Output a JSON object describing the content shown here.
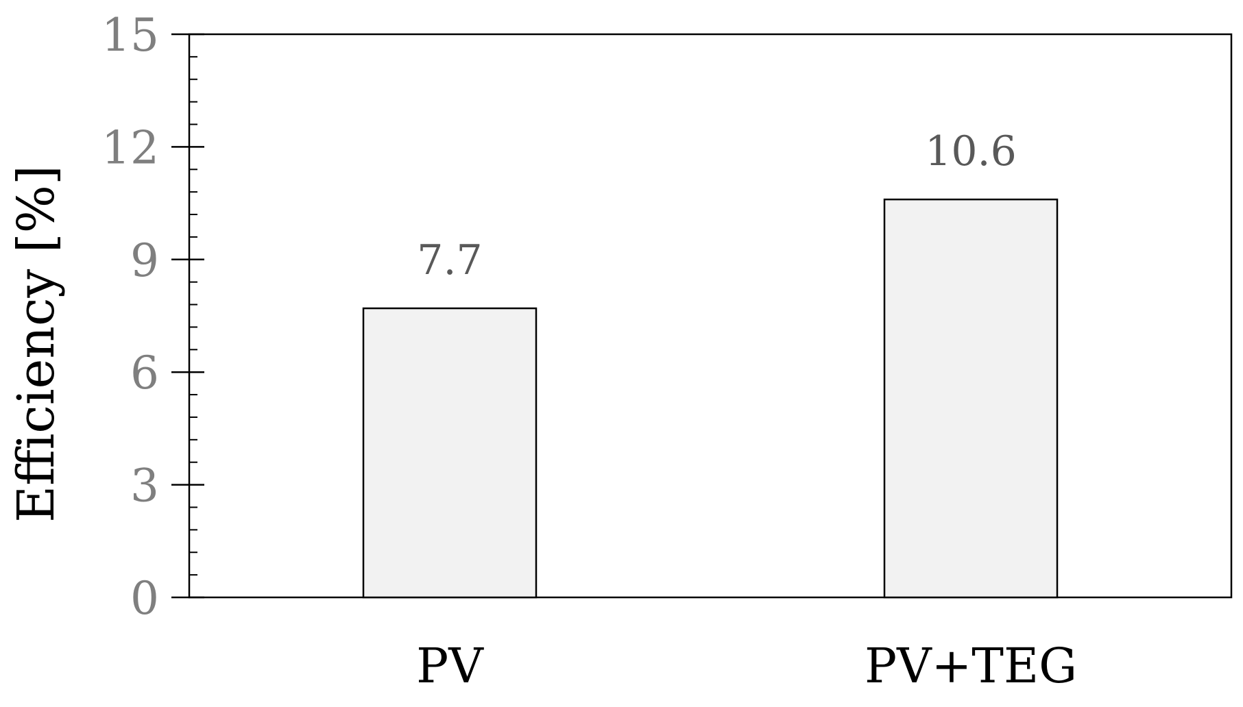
{
  "chart_data": {
    "type": "bar",
    "title": "",
    "xlabel": "",
    "ylabel": "Efficiency [%]",
    "categories": [
      "PV",
      "PV+TEG"
    ],
    "values": [
      7.7,
      10.6
    ],
    "data_labels": [
      "7.7",
      "10.6"
    ],
    "ylim": [
      0,
      15
    ],
    "yticks": [
      0,
      3,
      6,
      9,
      12,
      15
    ],
    "ytick_labels": [
      "0",
      "3",
      "6",
      "9",
      "12",
      "15"
    ],
    "minor_ticks_per_major": 5,
    "grid": false,
    "legend": "none",
    "colors": {
      "bar_fill": "#f2f2f2",
      "bar_stroke": "#000000",
      "axis": "#000000",
      "tick_label": "#7f7f7f",
      "data_label": "#595959",
      "category_label": "#000000",
      "ylabel": "#000000"
    }
  }
}
